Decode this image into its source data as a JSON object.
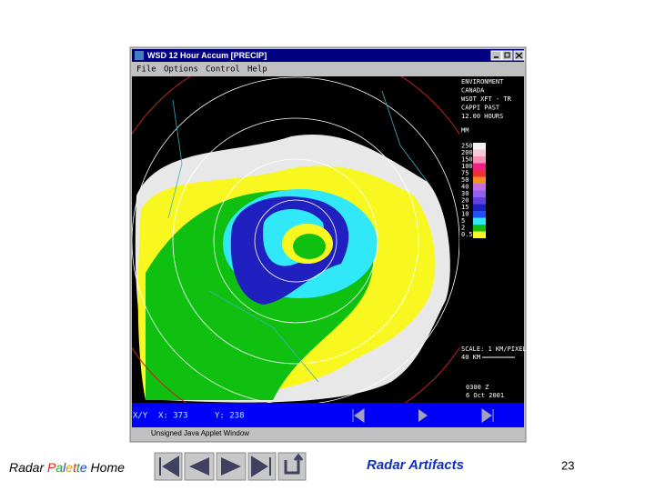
{
  "window": {
    "title": "WSD 12 Hour Accum [PRECIP]",
    "menu": [
      "File",
      "Options",
      "Control",
      "Help"
    ],
    "panel": {
      "lines": [
        "ENVIRONMENT",
        "CANADA",
        "WSOT XFT - TR",
        "CAPPI PAST",
        "12.00 HOURS",
        "MM"
      ],
      "legend": [
        {
          "label": "250",
          "color": "#f4f0f4"
        },
        {
          "label": "200",
          "color": "#f8c8d8"
        },
        {
          "label": "150",
          "color": "#f890b8"
        },
        {
          "label": "100",
          "color": "#f02080"
        },
        {
          "label": "75",
          "color": "#f03030"
        },
        {
          "label": "50",
          "color": "#f89020"
        },
        {
          "label": "40",
          "color": "#c070e0"
        },
        {
          "label": "30",
          "color": "#9060f0"
        },
        {
          "label": "20",
          "color": "#6040e0"
        },
        {
          "label": "15",
          "color": "#2020c0"
        },
        {
          "label": "10",
          "color": "#2050f8"
        },
        {
          "label": "5",
          "color": "#30e8f8"
        },
        {
          "label": "2",
          "color": "#10c010"
        },
        {
          "label": "0.5",
          "color": "#f8f820"
        }
      ],
      "scale": [
        "SCALE: 1 KM/PIXEL",
        "40 KM"
      ],
      "time": [
        "0300 Z",
        "6 Oct 2001"
      ]
    },
    "status": [
      "X/Y",
      "X: 373",
      "Y: 238"
    ],
    "footer_note": "Unsigned Java Applet Window"
  },
  "slide": {
    "home_link": [
      {
        "text": "Radar ",
        "color": "#000000"
      },
      {
        "text": "P",
        "color": "#e02020"
      },
      {
        "text": "a",
        "color": "#20a020"
      },
      {
        "text": "l",
        "color": "#2040e0"
      },
      {
        "text": "e",
        "color": "#e0a000"
      },
      {
        "text": "t",
        "color": "#e02020"
      },
      {
        "text": "t",
        "color": "#20a020"
      },
      {
        "text": "e",
        "color": "#2040e0"
      },
      {
        "text": " Home",
        "color": "#000000"
      }
    ],
    "link": "Radar Artifacts",
    "page": "23"
  }
}
